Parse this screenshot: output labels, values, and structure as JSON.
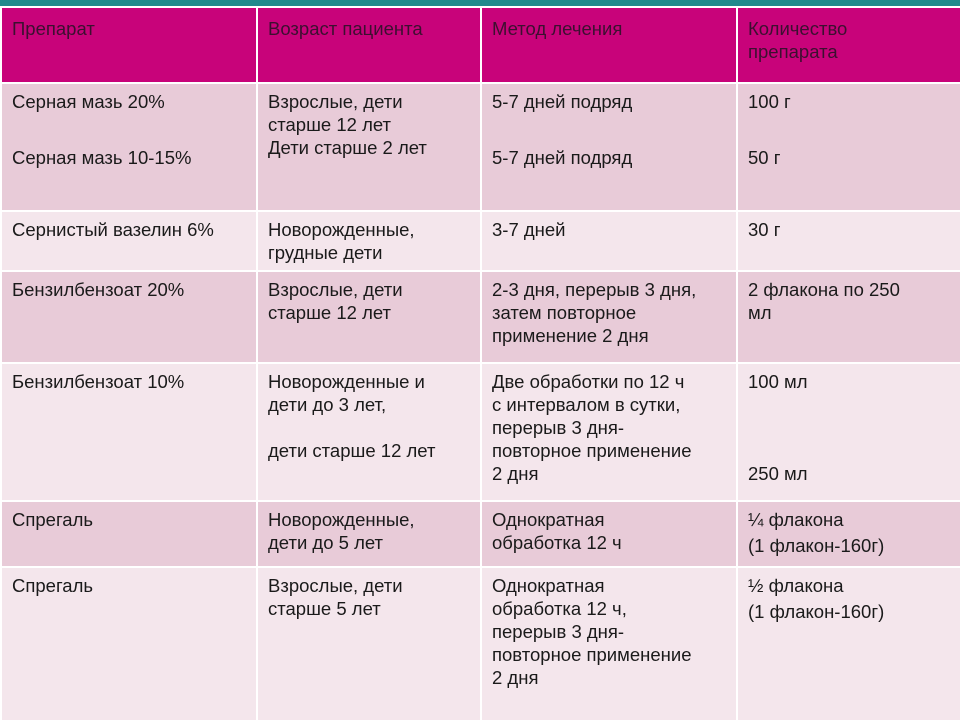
{
  "header": {
    "col1": "Препарат",
    "col2": "Возраст пациента",
    "col3": "Метод лечения",
    "col4_line1": "Количество",
    "col4_line2": "препарата"
  },
  "rows": [
    {
      "drug_a": "Серная мазь 20%",
      "drug_b": "Серная мазь 10-15%",
      "age_a1": "Взрослые, дети",
      "age_a2": "старше 12 лет",
      "age_b": "Дети старше 2 лет",
      "method_a": "5-7 дней подряд",
      "method_b": "5-7 дней подряд",
      "qty_a": "100 г",
      "qty_b": "50 г"
    },
    {
      "drug": "Сернистый вазелин 6%",
      "age1": "Новорожденные,",
      "age2": "грудные дети",
      "method": "3-7 дней",
      "qty": "30 г"
    },
    {
      "drug": "Бензилбензоат 20%",
      "age1": "Взрослые, дети",
      "age2": "старше 12 лет",
      "method1": "2-3 дня, перерыв 3 дня,",
      "method2": "затем повторное",
      "method3": "применение 2 дня",
      "qty1": "2 флакона по 250",
      "qty2": "мл"
    },
    {
      "drug": "Бензилбензоат 10%",
      "age_a1": "Новорожденные и",
      "age_a2": "дети до 3 лет,",
      "age_b": "дети старше 12 лет",
      "method1": "Две обработки по 12 ч",
      "method2": "с интервалом в сутки,",
      "method3": "перерыв 3 дня-",
      "method4": "повторное применение",
      "method5": "2 дня",
      "qty_a": "100 мл",
      "qty_b": "250 мл"
    },
    {
      "drug": "Спрегаль",
      "age1": "Новорожденные,",
      "age2": "дети до 5 лет",
      "method1": "Однократная",
      "method2": "обработка 12 ч",
      "qty1": "¼ флакона",
      "qty2": "(1 флакон-160г)"
    },
    {
      "drug": "Спрегаль",
      "age1": "Взрослые, дети",
      "age2": "старше 5 лет",
      "method1": "Однократная",
      "method2": "обработка 12 ч,",
      "method3": "перерыв 3 дня-",
      "method4": "повторное применение",
      "method5": "2 дня",
      "qty1": "½ флакона",
      "qty2": "(1 флакон-160г)"
    }
  ]
}
